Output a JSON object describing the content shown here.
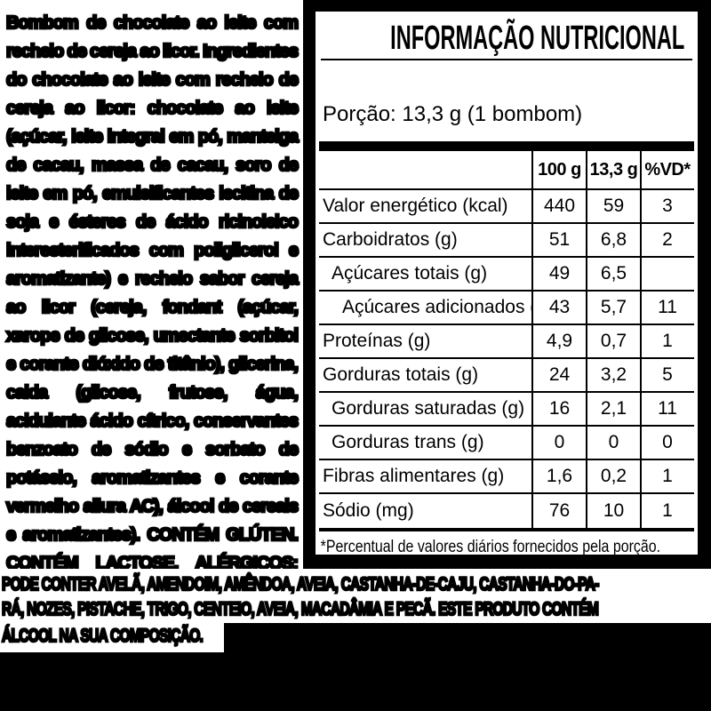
{
  "colors": {
    "canvas": "#000000",
    "label_bg": "#ffffff",
    "ink": "#000000"
  },
  "background": {
    "ingredients_paragraph": "Bombom de chocolate ao leite com recheio de cereja ao licor. Ingredientes do chocolate ao leite com recheio de cereja ao licor: chocolate ao leite (açúcar, leite integral em pó, manteiga de cacau, massa de cacau, soro de leite em pó, emulsificantes lecitina de soja e ésteres de ácido ricinoleico interesterificados com poliglicerol e aromatizante) e recheio sabor cereja ao licor (cereja, fondant (açúcar, xarope de glicose, umectante sorbitol e corante dióxido de titânio), glicerina, calda (glicose, frutose, água, acidulante ácido cítrico, conservantes benzoato de sódio e sorbato de potássio, aromatizantes e corante vermelho allura AC), álcool de cereais e aromatizantes). CONTÉM GLÚTEN. CONTÉM LACTOSE. ALÉRGICOS: CONTÉM DERIVADOS DE LEITE, SOJA E CEVADA.",
    "allergen_line_1": "PODE CONTER AVELÃ, AMENDOIM, AMÊNDOA, AVEIA, CASTANHA-DE-CAJU, CASTANHA-DO-PA-",
    "allergen_line_2": "RÁ, NOZES, PISTACHE, TRIGO, CENTEIO, AVEIA, MACADÂMIA E PECÃ. ESTE PRODUTO CONTÉM",
    "allergen_line_3": "ÁLCOOL NA SUA COMPOSIÇÃO."
  },
  "panel": {
    "title": "INFORMAÇÃO NUTRICIONAL",
    "serving": "Porção: 13,3 g (1 bombom)",
    "table": {
      "columns": [
        "",
        "100 g",
        "13,3 g",
        "%VD*"
      ],
      "rows": [
        {
          "name": "Valor energético (kcal)",
          "indent": 0,
          "per_100g": "440",
          "per_serving": "59",
          "vd_percent": "3"
        },
        {
          "name": "Carboidratos (g)",
          "indent": 0,
          "per_100g": "51",
          "per_serving": "6,8",
          "vd_percent": "2"
        },
        {
          "name": "Açúcares totais (g)",
          "indent": 1,
          "per_100g": "49",
          "per_serving": "6,5",
          "vd_percent": ""
        },
        {
          "name": "Açúcares adicionados (g)",
          "indent": 2,
          "per_100g": "43",
          "per_serving": "5,7",
          "vd_percent": "11"
        },
        {
          "name": "Proteínas (g)",
          "indent": 0,
          "per_100g": "4,9",
          "per_serving": "0,7",
          "vd_percent": "1"
        },
        {
          "name": "Gorduras totais (g)",
          "indent": 0,
          "per_100g": "24",
          "per_serving": "3,2",
          "vd_percent": "5"
        },
        {
          "name": "Gorduras saturadas (g)",
          "indent": 1,
          "per_100g": "16",
          "per_serving": "2,1",
          "vd_percent": "11"
        },
        {
          "name": "Gorduras trans (g)",
          "indent": 1,
          "per_100g": "0",
          "per_serving": "0",
          "vd_percent": "0"
        },
        {
          "name": "Fibras alimentares (g)",
          "indent": 0,
          "per_100g": "1,6",
          "per_serving": "0,2",
          "vd_percent": "1"
        },
        {
          "name": "Sódio (mg)",
          "indent": 0,
          "per_100g": "76",
          "per_serving": "10",
          "vd_percent": "1"
        }
      ],
      "footnote": "*Percentual de valores diários fornecidos pela porção."
    }
  }
}
